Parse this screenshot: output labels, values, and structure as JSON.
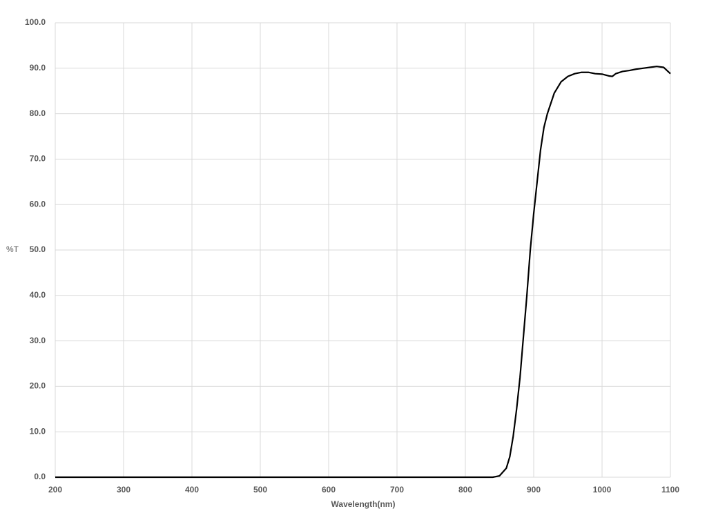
{
  "chart_data": {
    "type": "line",
    "xlabel": "Wavelength(nm)",
    "ylabel": "%T",
    "x": [
      200,
      300,
      400,
      500,
      600,
      700,
      800,
      840,
      850,
      860,
      865,
      870,
      875,
      880,
      885,
      890,
      895,
      900,
      905,
      910,
      915,
      920,
      930,
      940,
      950,
      960,
      970,
      980,
      990,
      1000,
      1010,
      1015,
      1020,
      1030,
      1040,
      1050,
      1060,
      1070,
      1080,
      1090,
      1100
    ],
    "series": [
      {
        "color": "#000000",
        "values": [
          0,
          0,
          0,
          0,
          0,
          0,
          0,
          0,
          0.3,
          2,
          4.5,
          9,
          15,
          22,
          31,
          40,
          50,
          58,
          65,
          72,
          77,
          80,
          84.5,
          87,
          88.2,
          88.8,
          89.1,
          89.1,
          88.8,
          88.7,
          88.3,
          88.2,
          88.8,
          89.3,
          89.5,
          89.8,
          90.0,
          90.2,
          90.4,
          90.2,
          88.8
        ]
      }
    ],
    "xlim": [
      200,
      1100
    ],
    "xticks": [
      200,
      300,
      400,
      500,
      600,
      700,
      800,
      900,
      1000,
      1100
    ],
    "ylim": [
      0,
      100
    ],
    "yticks": [
      {
        "value": 0,
        "label": "0.0"
      },
      {
        "value": 10,
        "label": "10.0"
      },
      {
        "value": 20,
        "label": "20.0"
      },
      {
        "value": 30,
        "label": "30.0"
      },
      {
        "value": 40,
        "label": "40.0"
      },
      {
        "value": 50,
        "label": "50.0"
      },
      {
        "value": 60,
        "label": "60.0"
      },
      {
        "value": 70,
        "label": "70.0"
      },
      {
        "value": 80,
        "label": "80.0"
      },
      {
        "value": 90,
        "label": "90.0"
      },
      {
        "value": 100,
        "label": "100.0"
      }
    ],
    "grid": true
  }
}
